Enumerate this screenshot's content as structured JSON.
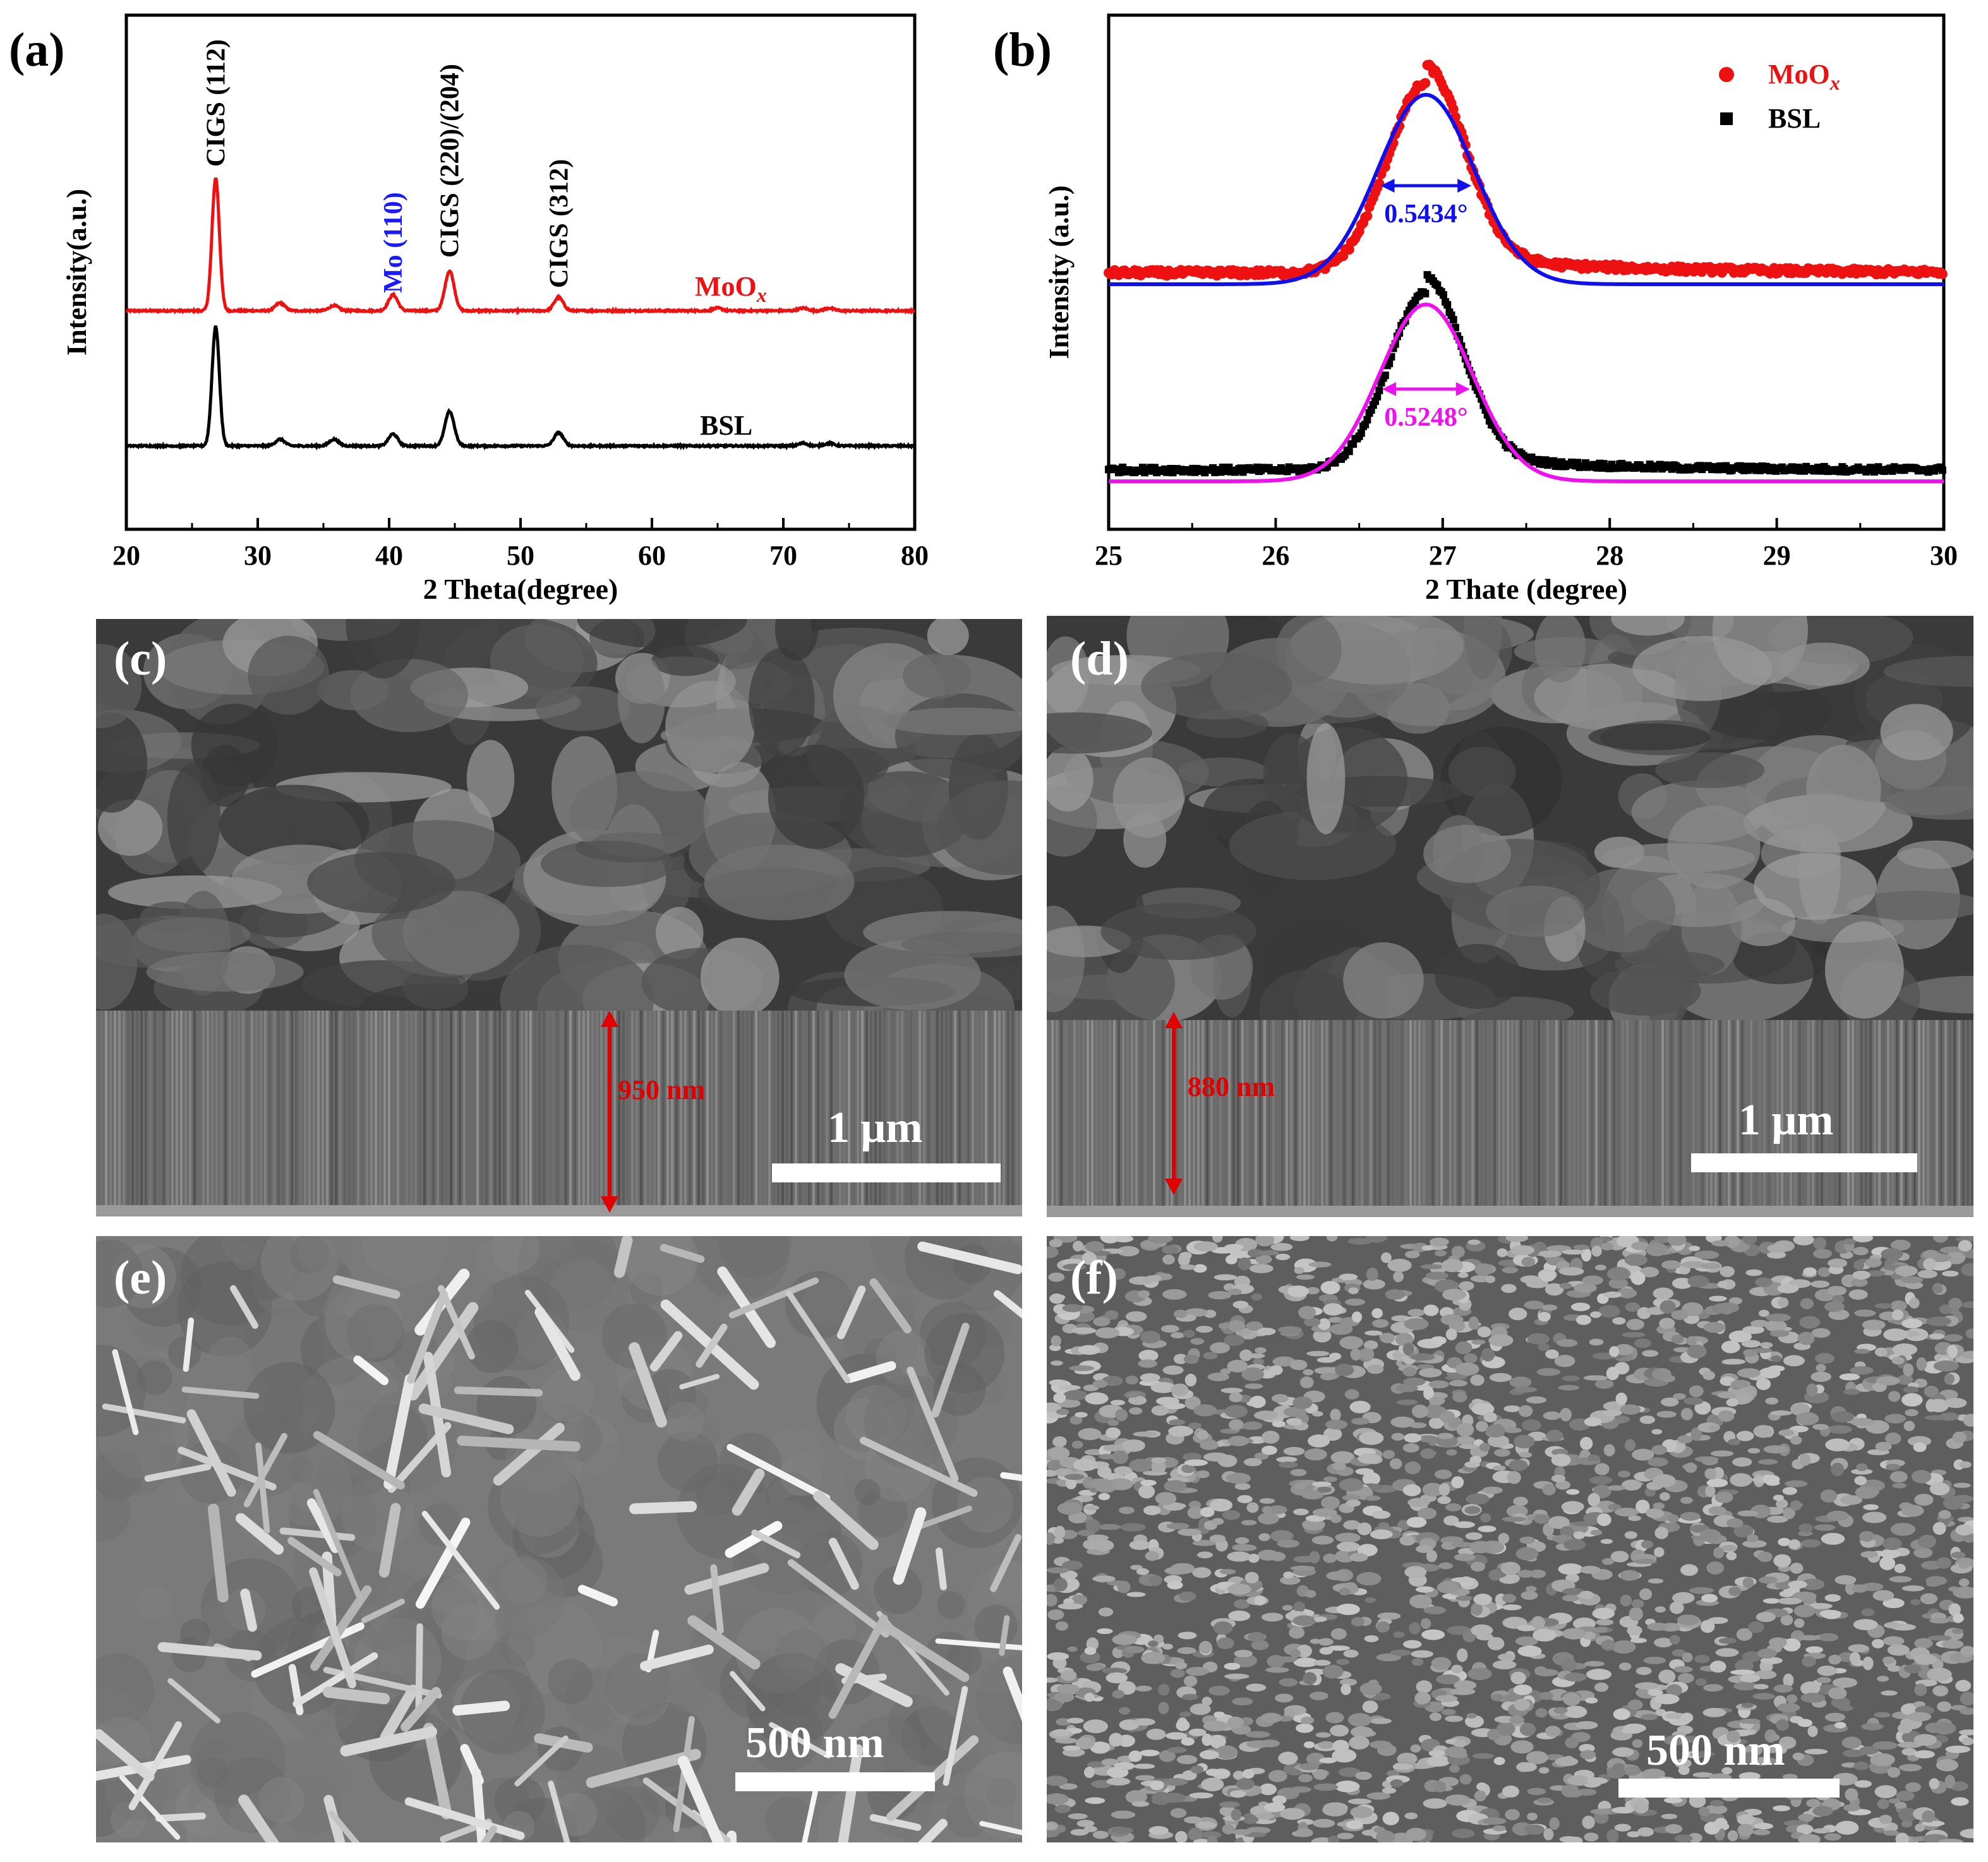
{
  "panels": {
    "a": {
      "letter": "(a)"
    },
    "b": {
      "letter": "(b)"
    },
    "c": {
      "letter": "(c)",
      "scale_label": "1 μm",
      "thickness_label": "950 nm"
    },
    "d": {
      "letter": "(d)",
      "scale_label": "1 μm",
      "thickness_label": "880 nm"
    },
    "e": {
      "letter": "(e)",
      "scale_label": "500 nm"
    },
    "f": {
      "letter": "(f)",
      "scale_label": "500 nm"
    }
  },
  "chart_data": [
    {
      "type": "line",
      "xlabel": "2 Theta(degree)",
      "ylabel": "Intensity(a.u.)",
      "xlim": [
        20,
        80
      ],
      "xticks": [
        20,
        30,
        40,
        50,
        60,
        70,
        80
      ],
      "grid": false,
      "annotations": [
        {
          "text": "CIGS (112)",
          "x": 26.8,
          "color": "#000000"
        },
        {
          "text": "Mo (110)",
          "x": 40.3,
          "color": "#1a1aff"
        },
        {
          "text": "CIGS (220)/(204)",
          "x": 44.6,
          "color": "#000000"
        },
        {
          "text": "CIGS (312)",
          "x": 52.9,
          "color": "#000000"
        }
      ],
      "series": [
        {
          "name": "MoOx",
          "name_main": "MoO",
          "name_sub": "x",
          "color": "#ee1111",
          "baseline": 1.15,
          "peaks": [
            [
              26.8,
              1.0
            ],
            [
              31.7,
              0.06
            ],
            [
              35.8,
              0.04
            ],
            [
              40.3,
              0.12
            ],
            [
              44.6,
              0.3
            ],
            [
              52.9,
              0.1
            ],
            [
              65.0,
              0.02
            ],
            [
              71.5,
              0.02
            ],
            [
              73.5,
              0.02
            ]
          ]
        },
        {
          "name": "BSL",
          "color": "#000000",
          "baseline": 0.0,
          "peaks": [
            [
              26.8,
              0.9
            ],
            [
              31.7,
              0.05
            ],
            [
              35.8,
              0.05
            ],
            [
              40.3,
              0.09
            ],
            [
              44.6,
              0.26
            ],
            [
              52.9,
              0.1
            ],
            [
              71.5,
              0.02
            ],
            [
              73.5,
              0.02
            ]
          ]
        }
      ]
    },
    {
      "type": "scatter",
      "xlabel": "2 Thate (degree)",
      "ylabel": "Intensity (a.u.)",
      "xlim": [
        25,
        30
      ],
      "xticks": [
        25,
        26,
        27,
        28,
        29,
        30
      ],
      "grid": false,
      "legend_position": "top-right",
      "series": [
        {
          "name": "MoOx",
          "name_main": "MoO",
          "name_sub": "x",
          "color": "#ee1111",
          "marker": "circle",
          "center": 26.9,
          "fwhm_deg": 0.5434,
          "fit_color": "#1010ee",
          "fwhm_label": "0.5434°"
        },
        {
          "name": "BSL",
          "color": "#000000",
          "marker": "square",
          "center": 26.9,
          "fwhm_deg": 0.5248,
          "fit_color": "#ee10ee",
          "fwhm_label": "0.5248°"
        }
      ]
    }
  ]
}
